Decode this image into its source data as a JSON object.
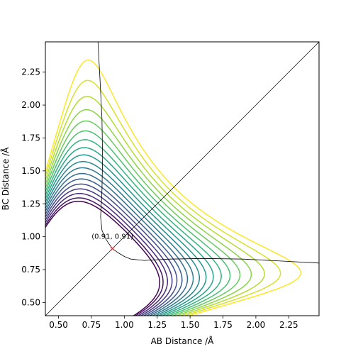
{
  "chart_data": {
    "type": "contour",
    "xlabel": "AB Distance /Å",
    "ylabel": "BC Distance /Å",
    "xlim": [
      0.4,
      2.48
    ],
    "ylim": [
      0.4,
      2.48
    ],
    "x_ticks": [
      0.5,
      0.75,
      1.0,
      1.25,
      1.5,
      1.75,
      2.0,
      2.25
    ],
    "x_tick_labels": [
      "0.50",
      "0.75",
      "1.00",
      "1.25",
      "1.50",
      "1.75",
      "2.00",
      "2.25"
    ],
    "y_ticks": [
      0.5,
      0.75,
      1.0,
      1.25,
      1.5,
      1.75,
      2.0,
      2.25
    ],
    "y_tick_labels": [
      "0.50",
      "0.75",
      "1.00",
      "1.25",
      "1.50",
      "1.75",
      "2.00",
      "2.25"
    ],
    "grid": false,
    "colormap": "viridis",
    "contour_levels_shown": [
      0.0,
      0.04,
      0.09,
      0.14,
      0.19,
      0.24,
      0.29,
      0.34,
      0.39,
      0.44,
      0.49,
      0.54,
      0.59,
      0.64,
      0.69,
      0.74,
      0.79,
      0.84
    ],
    "colormap_stops": [
      "#440154",
      "#482878",
      "#3e4989",
      "#31688e",
      "#26828e",
      "#1f9e89",
      "#35b779",
      "#6ece58",
      "#b5de2b",
      "#fde725"
    ],
    "diagonal_line": {
      "x": [
        0.4,
        2.48
      ],
      "y": [
        0.4,
        2.48
      ]
    },
    "trajectory": {
      "color": "#000000",
      "series": [
        {
          "x": [
            0.91,
            0.88,
            0.85,
            0.83,
            0.82,
            0.83,
            0.835,
            0.83,
            0.815,
            0.8,
            0.8,
            0.8
          ],
          "y": [
            0.91,
            0.95,
            1.0,
            1.05,
            1.15,
            1.35,
            1.6,
            1.9,
            2.2,
            2.48,
            2.48,
            2.48
          ]
        },
        {
          "x": [
            0.91,
            0.95,
            1.0,
            1.05,
            1.15,
            1.35,
            1.6,
            1.9,
            2.2,
            2.48
          ],
          "y": [
            0.91,
            0.88,
            0.85,
            0.83,
            0.82,
            0.83,
            0.835,
            0.83,
            0.815,
            0.8
          ]
        }
      ]
    },
    "transition_state": {
      "x": 0.91,
      "y": 0.91,
      "color": "#d62728"
    },
    "annotations": [
      {
        "text": "(0.91, 0.91)",
        "x": 0.91,
        "y": 0.91
      }
    ]
  }
}
